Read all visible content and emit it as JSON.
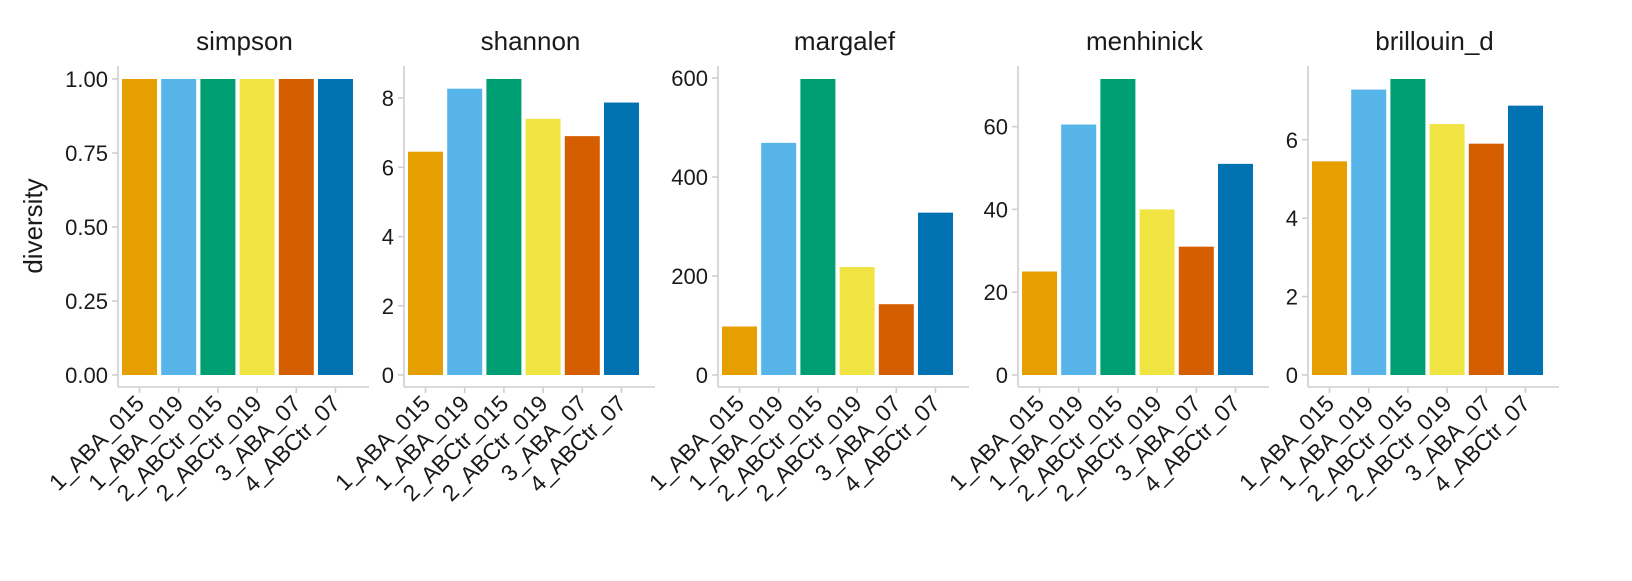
{
  "chart_data": {
    "type": "bar",
    "ylabel": "diversity",
    "grid": false,
    "legend": "none",
    "categories": [
      "1_ABA_015",
      "1_ABA_019",
      "2_ABCtr_015",
      "2_ABCtr_019",
      "3_ABA_07",
      "4_ABCtr_07"
    ],
    "colors": [
      "#E69F00",
      "#56B4E9",
      "#009E73",
      "#F0E442",
      "#D55E00",
      "#0072B2"
    ],
    "facets": [
      {
        "title": "simpson",
        "ylim": [
          0,
          1.0
        ],
        "yticks": [
          0,
          0.25,
          0.5,
          0.75,
          1.0
        ],
        "ytick_labels": [
          "0.00",
          "0.25",
          "0.50",
          "0.75",
          "1.00"
        ],
        "values": [
          1.0,
          1.0,
          1.0,
          1.0,
          1.0,
          1.0
        ]
      },
      {
        "title": "shannon",
        "ylim": [
          0,
          8.55
        ],
        "yticks": [
          0,
          2,
          4,
          6,
          8
        ],
        "ytick_labels": [
          "0",
          "2",
          "4",
          "6",
          "8"
        ],
        "values": [
          6.45,
          8.27,
          8.55,
          7.4,
          6.9,
          7.87
        ]
      },
      {
        "title": "margalef",
        "ylim": [
          0,
          598
        ],
        "yticks": [
          0,
          200,
          400,
          600
        ],
        "ytick_labels": [
          "0",
          "200",
          "400",
          "600"
        ],
        "values": [
          98,
          469,
          598,
          218,
          143,
          328
        ]
      },
      {
        "title": "menhinick",
        "ylim": [
          0,
          71.5
        ],
        "yticks": [
          0,
          20,
          40,
          60
        ],
        "ytick_labels": [
          "0",
          "20",
          "40",
          "60"
        ],
        "values": [
          25,
          60.5,
          71.5,
          40,
          31,
          51
        ]
      },
      {
        "title": "brillouin_d",
        "ylim": [
          0,
          7.55
        ],
        "yticks": [
          0,
          2,
          4,
          6
        ],
        "ytick_labels": [
          "0",
          "2",
          "4",
          "6"
        ],
        "values": [
          5.45,
          7.28,
          7.55,
          6.4,
          5.9,
          6.87
        ]
      }
    ]
  }
}
